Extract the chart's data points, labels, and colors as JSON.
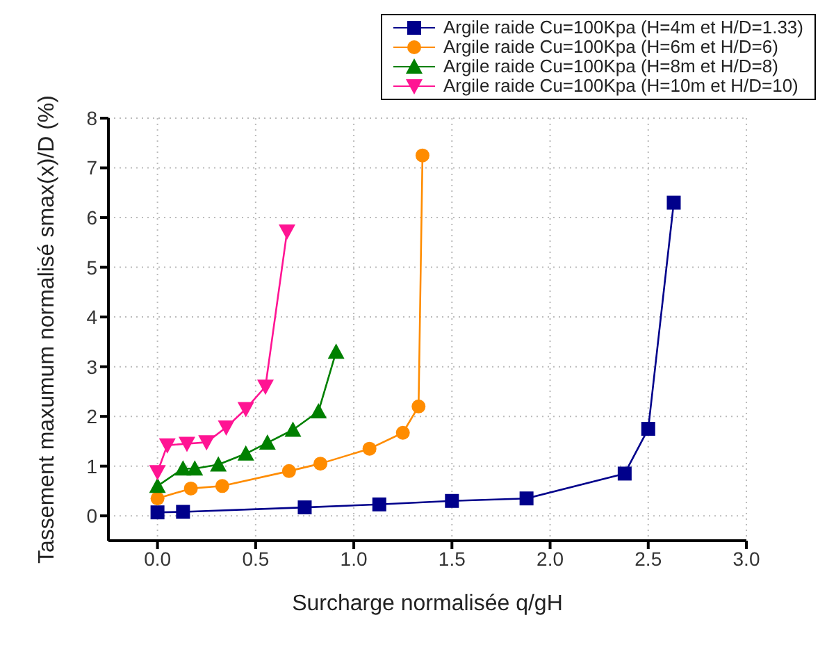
{
  "chart_data": {
    "type": "line",
    "xlabel": "Surcharge normalisée q/gH",
    "ylabel": "Tassement maxumum normalisé smax(x)/D (%)",
    "xlim": [
      -0.25,
      3.0
    ],
    "xticks": [
      {
        "value": 0,
        "label": "0.0"
      },
      {
        "value": 0.5,
        "label": "0.5"
      },
      {
        "value": 1,
        "label": "1.0"
      },
      {
        "value": 1.5,
        "label": "1.5"
      },
      {
        "value": 2,
        "label": "2.0"
      },
      {
        "value": 2.5,
        "label": "2.5"
      },
      {
        "value": 3,
        "label": "3.0"
      }
    ],
    "ylim": [
      -0.5,
      8
    ],
    "yticks": [
      0,
      1,
      2,
      3,
      4,
      5,
      6,
      7,
      8
    ],
    "grid": true,
    "legend": "top right",
    "line_style": "solid",
    "series": [
      {
        "name": "Argile raide Cu=100Kpa (H=4m et H/D=1.33)",
        "color": "#00008b",
        "marker": "square",
        "x": [
          0,
          0.13,
          0.75,
          1.13,
          1.5,
          1.88,
          2.38,
          2.5,
          2.63
        ],
        "values": [
          0.07,
          0.08,
          0.17,
          0.23,
          0.3,
          0.35,
          0.85,
          1.75,
          6.3
        ]
      },
      {
        "name": "Argile raide Cu=100Kpa (H=6m et H/D=6)",
        "color": "#ff8c00",
        "marker": "circle",
        "x": [
          0,
          0.17,
          0.33,
          0.67,
          0.83,
          1.08,
          1.25,
          1.33,
          1.35
        ],
        "values": [
          0.35,
          0.55,
          0.6,
          0.9,
          1.05,
          1.35,
          1.67,
          2.2,
          7.25
        ]
      },
      {
        "name": "Argile raide Cu=100Kpa (H=8m et H/D=8)",
        "color": "#008000",
        "marker": "triangle",
        "x": [
          0,
          0.13,
          0.19,
          0.31,
          0.45,
          0.56,
          0.69,
          0.82,
          0.91
        ],
        "values": [
          0.6,
          0.95,
          0.95,
          1.03,
          1.25,
          1.47,
          1.73,
          2.1,
          3.3
        ]
      },
      {
        "name": "Argile raide Cu=100Kpa (H=10m et H/D=10)",
        "color": "#ff1493",
        "marker": "triangle-down",
        "x": [
          0,
          0.05,
          0.15,
          0.25,
          0.35,
          0.45,
          0.55,
          0.66
        ],
        "values": [
          0.88,
          1.42,
          1.45,
          1.48,
          1.78,
          2.15,
          2.6,
          5.72
        ]
      }
    ]
  }
}
